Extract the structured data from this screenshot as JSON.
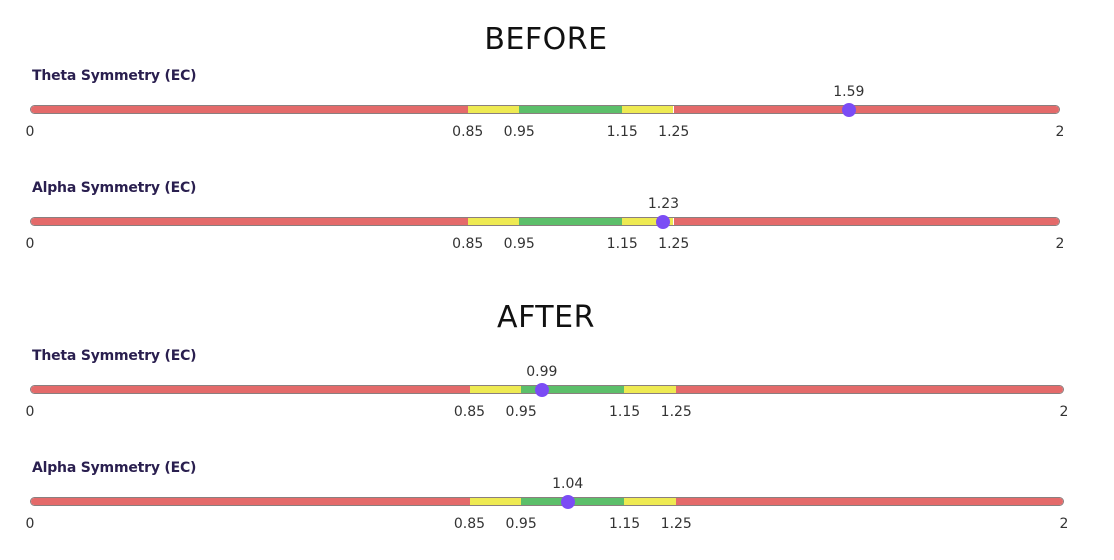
{
  "chart_data": [
    {
      "type": "bullet-range",
      "section": "BEFORE",
      "title": "Theta Symmetry (EC)",
      "value": 1.59,
      "min": 0,
      "max": 2,
      "bands": [
        {
          "from": 0,
          "to": 0.85,
          "color": "#e46a6a"
        },
        {
          "from": 0.85,
          "to": 0.95,
          "color": "#eeea52"
        },
        {
          "from": 0.95,
          "to": 1.15,
          "color": "#5cbf6a"
        },
        {
          "from": 1.15,
          "to": 1.25,
          "color": "#eeea52"
        },
        {
          "from": 1.25,
          "to": 2,
          "color": "#e46a6a"
        }
      ],
      "ticks": [
        "0",
        "0.85",
        "0.95",
        "1.15",
        "1.25",
        "2"
      ],
      "tick_values": [
        0,
        0.85,
        0.95,
        1.15,
        1.25,
        2
      ],
      "value_label": "1.59"
    },
    {
      "type": "bullet-range",
      "section": "BEFORE",
      "title": "Alpha Symmetry (EC)",
      "value": 1.23,
      "min": 0,
      "max": 2,
      "bands": [
        {
          "from": 0,
          "to": 0.85,
          "color": "#e46a6a"
        },
        {
          "from": 0.85,
          "to": 0.95,
          "color": "#eeea52"
        },
        {
          "from": 0.95,
          "to": 1.15,
          "color": "#5cbf6a"
        },
        {
          "from": 1.15,
          "to": 1.25,
          "color": "#eeea52"
        },
        {
          "from": 1.25,
          "to": 2,
          "color": "#e46a6a"
        }
      ],
      "ticks": [
        "0",
        "0.85",
        "0.95",
        "1.15",
        "1.25",
        "2"
      ],
      "tick_values": [
        0,
        0.85,
        0.95,
        1.15,
        1.25,
        2
      ],
      "value_label": "1.23"
    },
    {
      "type": "bullet-range",
      "section": "AFTER",
      "title": "Theta Symmetry (EC)",
      "value": 0.99,
      "min": 0,
      "max": 2,
      "bands": [
        {
          "from": 0,
          "to": 0.85,
          "color": "#e46a6a"
        },
        {
          "from": 0.85,
          "to": 0.95,
          "color": "#eeea52"
        },
        {
          "from": 0.95,
          "to": 1.15,
          "color": "#5cbf6a"
        },
        {
          "from": 1.15,
          "to": 1.25,
          "color": "#eeea52"
        },
        {
          "from": 1.25,
          "to": 2,
          "color": "#e46a6a"
        }
      ],
      "ticks": [
        "0",
        "0.85",
        "0.95",
        "1.15",
        "1.25",
        "2"
      ],
      "tick_values": [
        0,
        0.85,
        0.95,
        1.15,
        1.25,
        2
      ],
      "value_label": "0.99"
    },
    {
      "type": "bullet-range",
      "section": "AFTER",
      "title": "Alpha Symmetry (EC)",
      "value": 1.04,
      "min": 0,
      "max": 2,
      "bands": [
        {
          "from": 0,
          "to": 0.85,
          "color": "#e46a6a"
        },
        {
          "from": 0.85,
          "to": 0.95,
          "color": "#eeea52"
        },
        {
          "from": 0.95,
          "to": 1.15,
          "color": "#5cbf6a"
        },
        {
          "from": 1.15,
          "to": 1.25,
          "color": "#eeea52"
        },
        {
          "from": 1.25,
          "to": 2,
          "color": "#e46a6a"
        }
      ],
      "ticks": [
        "0",
        "0.85",
        "0.95",
        "1.15",
        "1.25",
        "2"
      ],
      "tick_values": [
        0,
        0.85,
        0.95,
        1.15,
        1.25,
        2
      ],
      "value_label": "1.04"
    }
  ],
  "sections": {
    "before": "BEFORE",
    "after": "AFTER"
  },
  "colors": {
    "marker": "#7b4cf5",
    "out_of_range": "#e46a6a",
    "borderline": "#eeea52",
    "in_range": "#5cbf6a"
  }
}
